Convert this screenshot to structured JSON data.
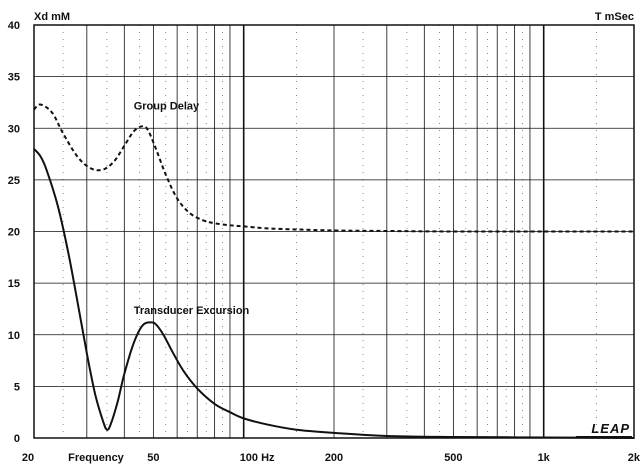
{
  "chart_data": {
    "type": "line",
    "x_scale": "log",
    "xlim": [
      20,
      2000
    ],
    "ylim": [
      0,
      40
    ],
    "grid": true,
    "left_axis_label": "Xd mM",
    "right_axis_label": "T mSec",
    "xlabel": "Frequency",
    "y_ticks": [
      "0",
      "5",
      "10",
      "15",
      "20",
      "25",
      "30",
      "35",
      "40"
    ],
    "x_ticks": [
      {
        "value": 20,
        "label": "20"
      },
      {
        "value": 50,
        "label": "50"
      },
      {
        "value": 100,
        "label": "100 Hz"
      },
      {
        "value": 200,
        "label": "200"
      },
      {
        "value": 500,
        "label": "500"
      },
      {
        "value": 1000,
        "label": "1k"
      },
      {
        "value": 2000,
        "label": "2k"
      }
    ],
    "series": [
      {
        "name": "Group Delay",
        "style": "dashed",
        "x": [
          20,
          21,
          23,
          25,
          28,
          31,
          34,
          37,
          40,
          43,
          46,
          48,
          51,
          55,
          60,
          66,
          73,
          80,
          90,
          100,
          120,
          150,
          200,
          300,
          500,
          1000,
          2000
        ],
        "values": [
          31.8,
          32.3,
          31.5,
          29.5,
          27.2,
          26.1,
          26.0,
          26.8,
          28.3,
          29.7,
          30.2,
          29.8,
          28.0,
          25.5,
          23.2,
          21.8,
          21.1,
          20.8,
          20.6,
          20.5,
          20.3,
          20.2,
          20.1,
          20.05,
          20.0,
          20.0,
          20.0
        ]
      },
      {
        "name": "Transducer Excursion",
        "style": "solid",
        "x": [
          20,
          21,
          22,
          24,
          26,
          28,
          30,
          32,
          34,
          35,
          36,
          38,
          40,
          43,
          46,
          49,
          51,
          54,
          58,
          63,
          70,
          80,
          90,
          100,
          120,
          150,
          200,
          300,
          500,
          1000,
          2000
        ],
        "values": [
          28.0,
          27.3,
          26.0,
          22.5,
          18.0,
          13.0,
          8.2,
          4.2,
          1.6,
          0.8,
          1.3,
          3.5,
          6.2,
          9.2,
          10.9,
          11.2,
          11.0,
          10.0,
          8.3,
          6.5,
          4.8,
          3.3,
          2.5,
          1.9,
          1.3,
          0.8,
          0.5,
          0.2,
          0.1,
          0.05,
          0.0
        ]
      }
    ],
    "annotations": [
      {
        "text": "Group Delay",
        "x": 43,
        "y": 31.8
      },
      {
        "text": "Transducer Excursion",
        "x": 43,
        "y": 12.0
      }
    ],
    "logo": "LEAP"
  }
}
